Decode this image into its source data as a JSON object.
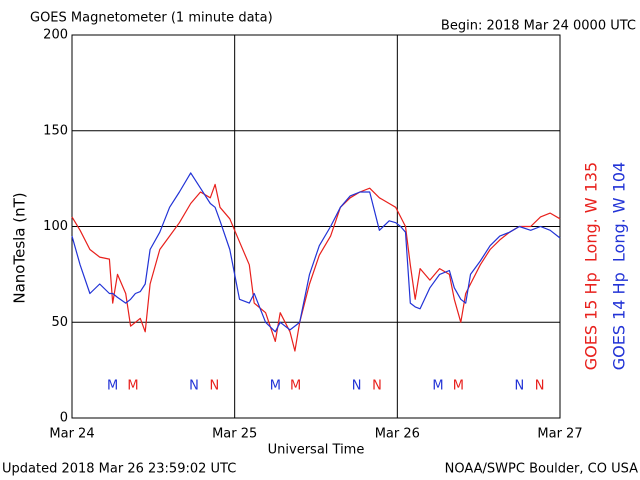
{
  "chart_data": {
    "type": "line",
    "title": "GOES Magnetometer (1 minute data)",
    "subtitle": "Begin:  2018 Mar 24 0000 UTC",
    "y_label": "NanoTesla (nT)",
    "x_label": "Universal Time",
    "footer_left": "Updated 2018 Mar 26 23:59:02 UTC",
    "footer_right": "NOAA/SWPC Boulder, CO USA",
    "xlim": [
      0,
      3
    ],
    "xticks": [
      {
        "value": 0,
        "label": "Mar 24"
      },
      {
        "value": 1,
        "label": "Mar 25"
      },
      {
        "value": 2,
        "label": "Mar 26"
      },
      {
        "value": 3,
        "label": "Mar 27"
      }
    ],
    "ylim": [
      0,
      200
    ],
    "yticks": [
      0,
      50,
      100,
      150,
      200
    ],
    "grid": true,
    "x": [
      0,
      0.05,
      0.11,
      0.17,
      0.23,
      0.25,
      0.28,
      0.33,
      0.36,
      0.39,
      0.42,
      0.45,
      0.48,
      0.54,
      0.6,
      0.66,
      0.73,
      0.79,
      0.85,
      0.88,
      0.91,
      0.97,
      1.03,
      1.09,
      1.12,
      1.19,
      1.25,
      1.28,
      1.34,
      1.37,
      1.4,
      1.46,
      1.52,
      1.59,
      1.65,
      1.71,
      1.77,
      1.83,
      1.89,
      1.95,
      1.99,
      2.02,
      2.05,
      2.08,
      2.11,
      2.14,
      2.2,
      2.26,
      2.32,
      2.35,
      2.39,
      2.42,
      2.45,
      2.51,
      2.57,
      2.63,
      2.69,
      2.75,
      2.82,
      2.88,
      2.94,
      3
    ],
    "series": [
      {
        "name": "GOES 15 Hp  Long. W 135",
        "color": "#e8201c",
        "values": [
          105,
          98,
          88,
          84,
          83,
          60,
          75,
          65,
          48,
          50,
          52,
          45,
          70,
          88,
          95,
          102,
          112,
          118,
          115,
          122,
          110,
          104,
          92,
          80,
          60,
          55,
          40,
          55,
          45,
          35,
          50,
          70,
          85,
          95,
          110,
          115,
          118,
          120,
          115,
          112,
          110,
          105,
          100,
          80,
          62,
          78,
          72,
          78,
          75,
          62,
          50,
          65,
          70,
          80,
          88,
          93,
          97,
          100,
          100,
          105,
          107,
          104
        ]
      },
      {
        "name": "GOES 14 Hp  Long. W 104",
        "color": "#2233d6",
        "values": [
          95,
          80,
          65,
          70,
          65,
          65,
          63,
          60,
          62,
          65,
          66,
          70,
          88,
          97,
          110,
          118,
          128,
          120,
          112,
          110,
          103,
          88,
          62,
          60,
          65,
          50,
          45,
          50,
          46,
          48,
          50,
          75,
          90,
          100,
          110,
          116,
          118,
          118,
          98,
          103,
          102,
          100,
          97,
          60,
          58,
          57,
          68,
          75,
          77,
          68,
          62,
          60,
          75,
          82,
          90,
          95,
          97,
          100,
          98,
          100,
          98,
          94
        ]
      }
    ],
    "annotations": [
      {
        "text": "M",
        "x": 0.25,
        "color": "#2233d6"
      },
      {
        "text": "M",
        "x": 0.375,
        "color": "#e8201c"
      },
      {
        "text": "N",
        "x": 0.75,
        "color": "#2233d6"
      },
      {
        "text": "N",
        "x": 0.875,
        "color": "#e8201c"
      },
      {
        "text": "M",
        "x": 1.25,
        "color": "#2233d6"
      },
      {
        "text": "M",
        "x": 1.375,
        "color": "#e8201c"
      },
      {
        "text": "N",
        "x": 1.75,
        "color": "#2233d6"
      },
      {
        "text": "N",
        "x": 1.875,
        "color": "#e8201c"
      },
      {
        "text": "M",
        "x": 2.25,
        "color": "#2233d6"
      },
      {
        "text": "M",
        "x": 2.375,
        "color": "#e8201c"
      },
      {
        "text": "N",
        "x": 2.75,
        "color": "#2233d6"
      },
      {
        "text": "N",
        "x": 2.875,
        "color": "#e8201c"
      }
    ]
  }
}
